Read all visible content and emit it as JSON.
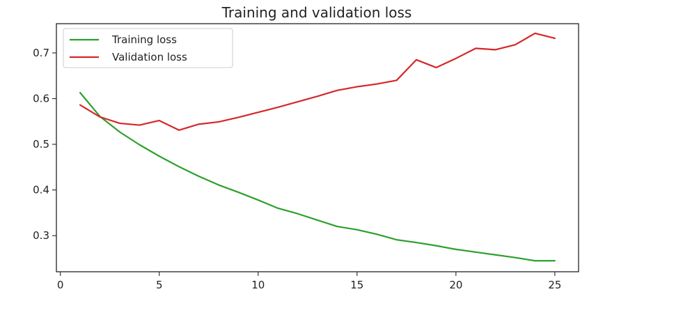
{
  "chart_data": {
    "type": "line",
    "title": "Training and validation loss",
    "xlabel": "",
    "ylabel": "",
    "xlim": [
      -0.2,
      26.2
    ],
    "ylim": [
      0.221,
      0.764
    ],
    "xticks": [
      0,
      5,
      10,
      15,
      20,
      25
    ],
    "yticks": [
      0.3,
      0.4,
      0.5,
      0.6,
      0.7
    ],
    "xtick_labels": [
      "0",
      "5",
      "10",
      "15",
      "20",
      "25"
    ],
    "ytick_labels": [
      "0.3",
      "0.4",
      "0.5",
      "0.6",
      "0.7"
    ],
    "grid": false,
    "legend_position": "top-left",
    "x": [
      1,
      2,
      3,
      4,
      5,
      6,
      7,
      8,
      9,
      10,
      11,
      12,
      13,
      14,
      15,
      16,
      17,
      18,
      19,
      20,
      21,
      22,
      23,
      24,
      25
    ],
    "series": [
      {
        "name": "Training loss",
        "color": "#2ca02c",
        "values": [
          0.613,
          0.561,
          0.527,
          0.499,
          0.474,
          0.451,
          0.43,
          0.411,
          0.395,
          0.378,
          0.36,
          0.348,
          0.334,
          0.32,
          0.313,
          0.303,
          0.291,
          0.285,
          0.278,
          0.27,
          0.264,
          0.258,
          0.252,
          0.245,
          0.245
        ]
      },
      {
        "name": "Validation loss",
        "color": "#d62728",
        "values": [
          0.586,
          0.56,
          0.546,
          0.542,
          0.552,
          0.531,
          0.544,
          0.549,
          0.559,
          0.57,
          0.581,
          0.593,
          0.605,
          0.618,
          0.626,
          0.632,
          0.64,
          0.685,
          0.668,
          0.688,
          0.71,
          0.707,
          0.718,
          0.743,
          0.732
        ]
      }
    ]
  }
}
